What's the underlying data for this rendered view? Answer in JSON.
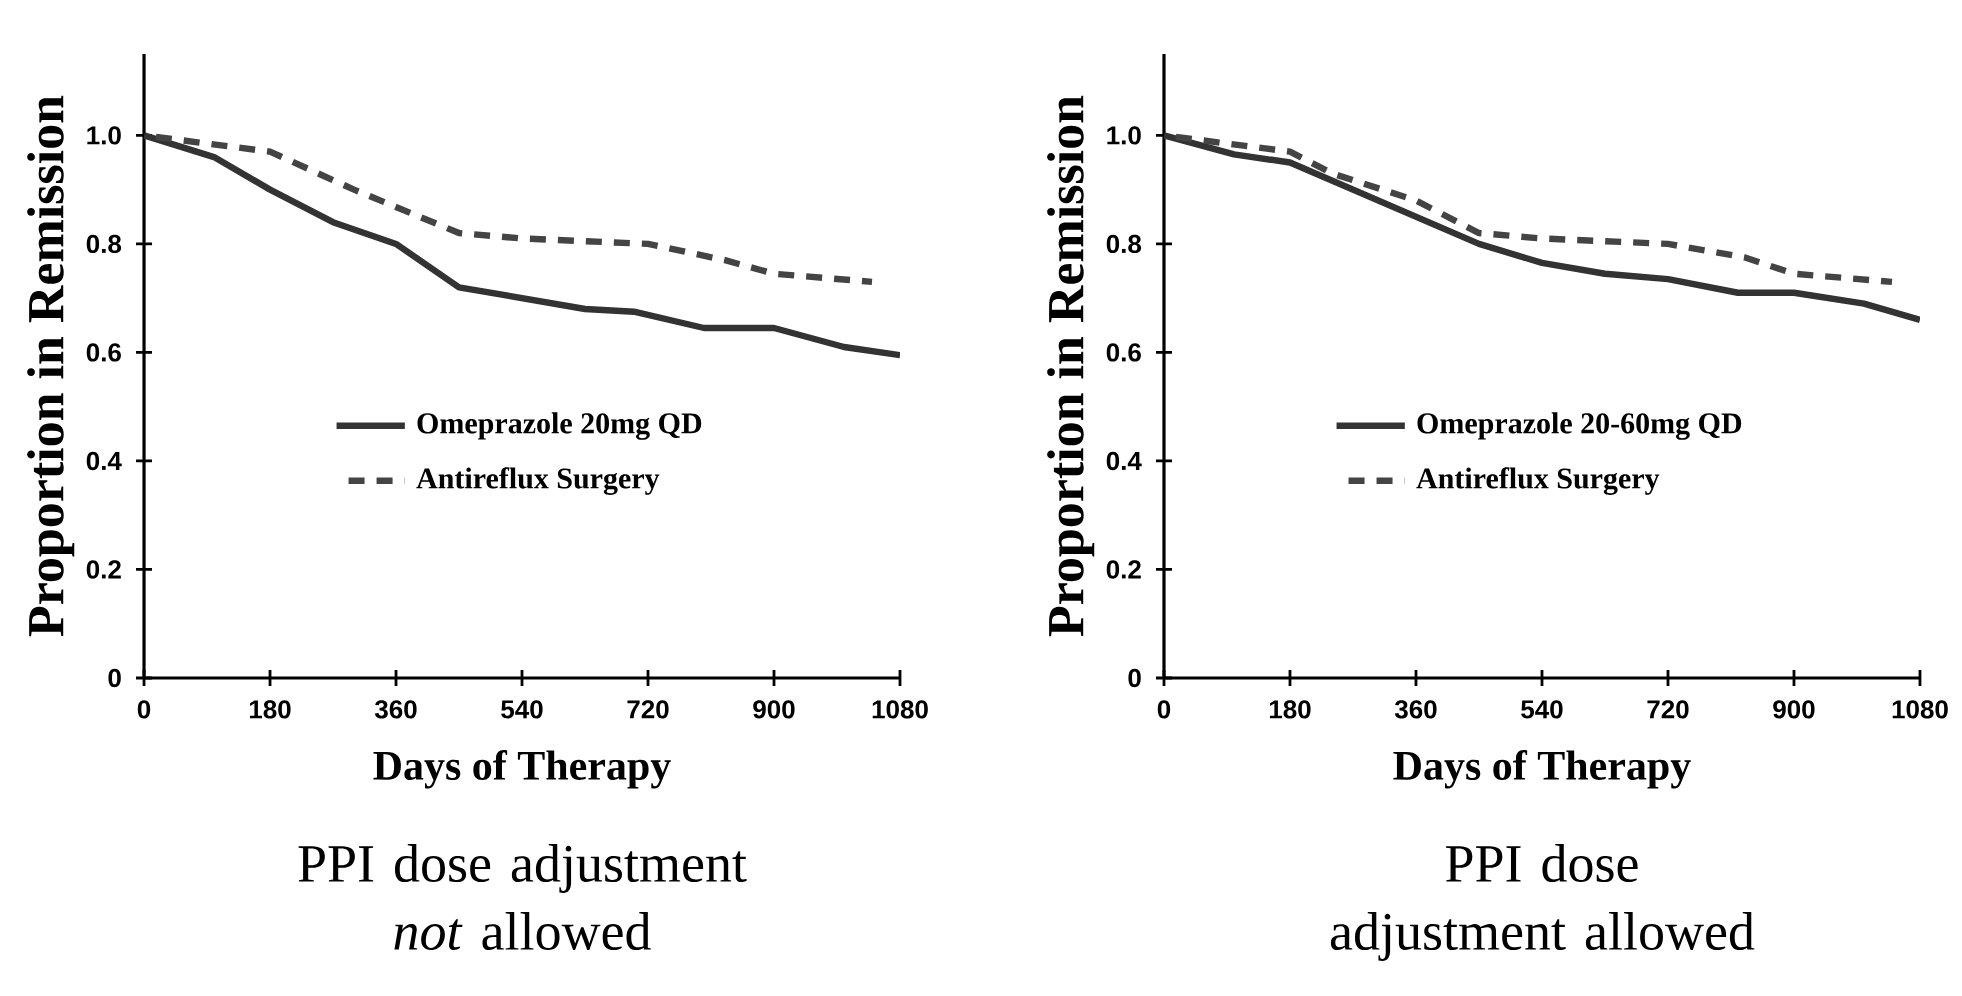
{
  "chart_data": [
    {
      "type": "line",
      "xlabel": "Days of Therapy",
      "ylabel": "Proportion in Remission",
      "annotations": [
        "PPI dose adjustment *not* allowed"
      ],
      "xlim": [
        0,
        1080
      ],
      "ylim": [
        0,
        1.15
      ],
      "xticks": [
        0,
        180,
        360,
        540,
        720,
        900,
        1080
      ],
      "yticks": [
        0,
        0.2,
        0.4,
        0.6,
        0.8,
        {
          "value": 1,
          "label": "1.0"
        }
      ],
      "legend": "center",
      "series": [
        {
          "name": "Omeprazole 20mg QD",
          "color": "#333333",
          "line_style": "solid",
          "x": [
            0,
            100,
            180,
            270,
            360,
            450,
            540,
            630,
            700,
            800,
            900,
            1000,
            1080
          ],
          "values": [
            1.0,
            0.96,
            0.9,
            0.84,
            0.8,
            0.72,
            0.7,
            0.68,
            0.675,
            0.645,
            0.645,
            0.61,
            0.595
          ]
        },
        {
          "name": "Antireflux Surgery",
          "color": "#444444",
          "line_style": "dashed",
          "x": [
            0,
            180,
            300,
            450,
            540,
            720,
            830,
            900,
            1040
          ],
          "values": [
            1.0,
            0.97,
            0.9,
            0.82,
            0.81,
            0.8,
            0.77,
            0.745,
            0.73
          ]
        }
      ]
    },
    {
      "type": "line",
      "xlabel": "Days of Therapy",
      "ylabel": "Proportion in Remission",
      "annotations": [
        "PPI dose adjustment allowed"
      ],
      "xlim": [
        0,
        1080
      ],
      "ylim": [
        0,
        1.15
      ],
      "xticks": [
        0,
        180,
        360,
        540,
        720,
        900,
        1080
      ],
      "yticks": [
        0,
        0.2,
        0.4,
        0.6,
        0.8,
        {
          "value": 1,
          "label": "1.0"
        }
      ],
      "legend": "center",
      "series": [
        {
          "name": "Omeprazole 20-60mg QD",
          "color": "#333333",
          "line_style": "solid",
          "x": [
            0,
            100,
            180,
            270,
            360,
            450,
            540,
            630,
            720,
            820,
            900,
            1000,
            1080
          ],
          "values": [
            1.0,
            0.965,
            0.95,
            0.9,
            0.85,
            0.8,
            0.765,
            0.745,
            0.735,
            0.71,
            0.71,
            0.69,
            0.66
          ]
        },
        {
          "name": "Antireflux Surgery",
          "color": "#444444",
          "line_style": "dashed",
          "x": [
            0,
            180,
            240,
            360,
            450,
            540,
            720,
            830,
            900,
            1040
          ],
          "values": [
            1.0,
            0.97,
            0.93,
            0.88,
            0.82,
            0.81,
            0.8,
            0.775,
            0.745,
            0.73
          ]
        }
      ]
    }
  ]
}
